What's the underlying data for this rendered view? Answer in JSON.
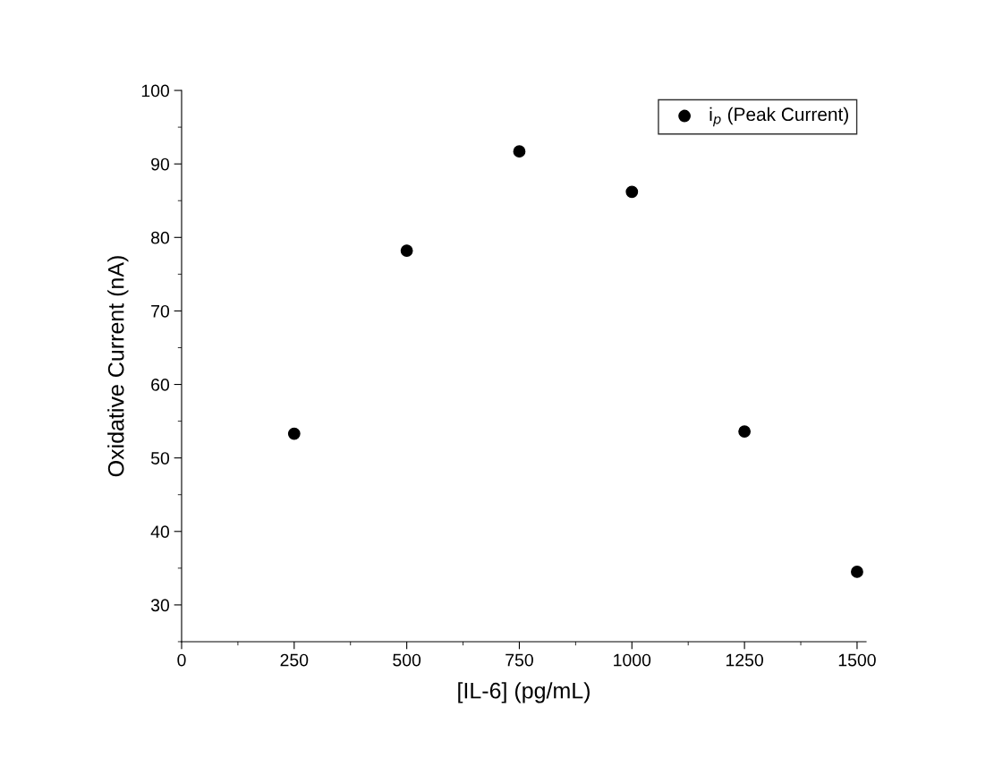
{
  "chart_data": {
    "type": "scatter",
    "xlabel": "[IL-6] (pg/mL)",
    "ylabel": "Oxidative Current (nA)",
    "x": [
      250,
      500,
      750,
      1000,
      1250,
      1500
    ],
    "series": [
      {
        "name": "i$_{p}$ (Peak Current)",
        "color": "#000000",
        "values": [
          53.3,
          78.2,
          91.7,
          86.2,
          53.6,
          34.5
        ]
      }
    ],
    "xlim": [
      0,
      1520
    ],
    "xticks": [
      0,
      250,
      500,
      750,
      1000,
      1250,
      1500
    ],
    "ylim": [
      25,
      100
    ],
    "yticks": [
      30,
      40,
      50,
      60,
      70,
      80,
      90,
      100
    ],
    "marker": "circle",
    "legend": "top right",
    "grid": false
  }
}
